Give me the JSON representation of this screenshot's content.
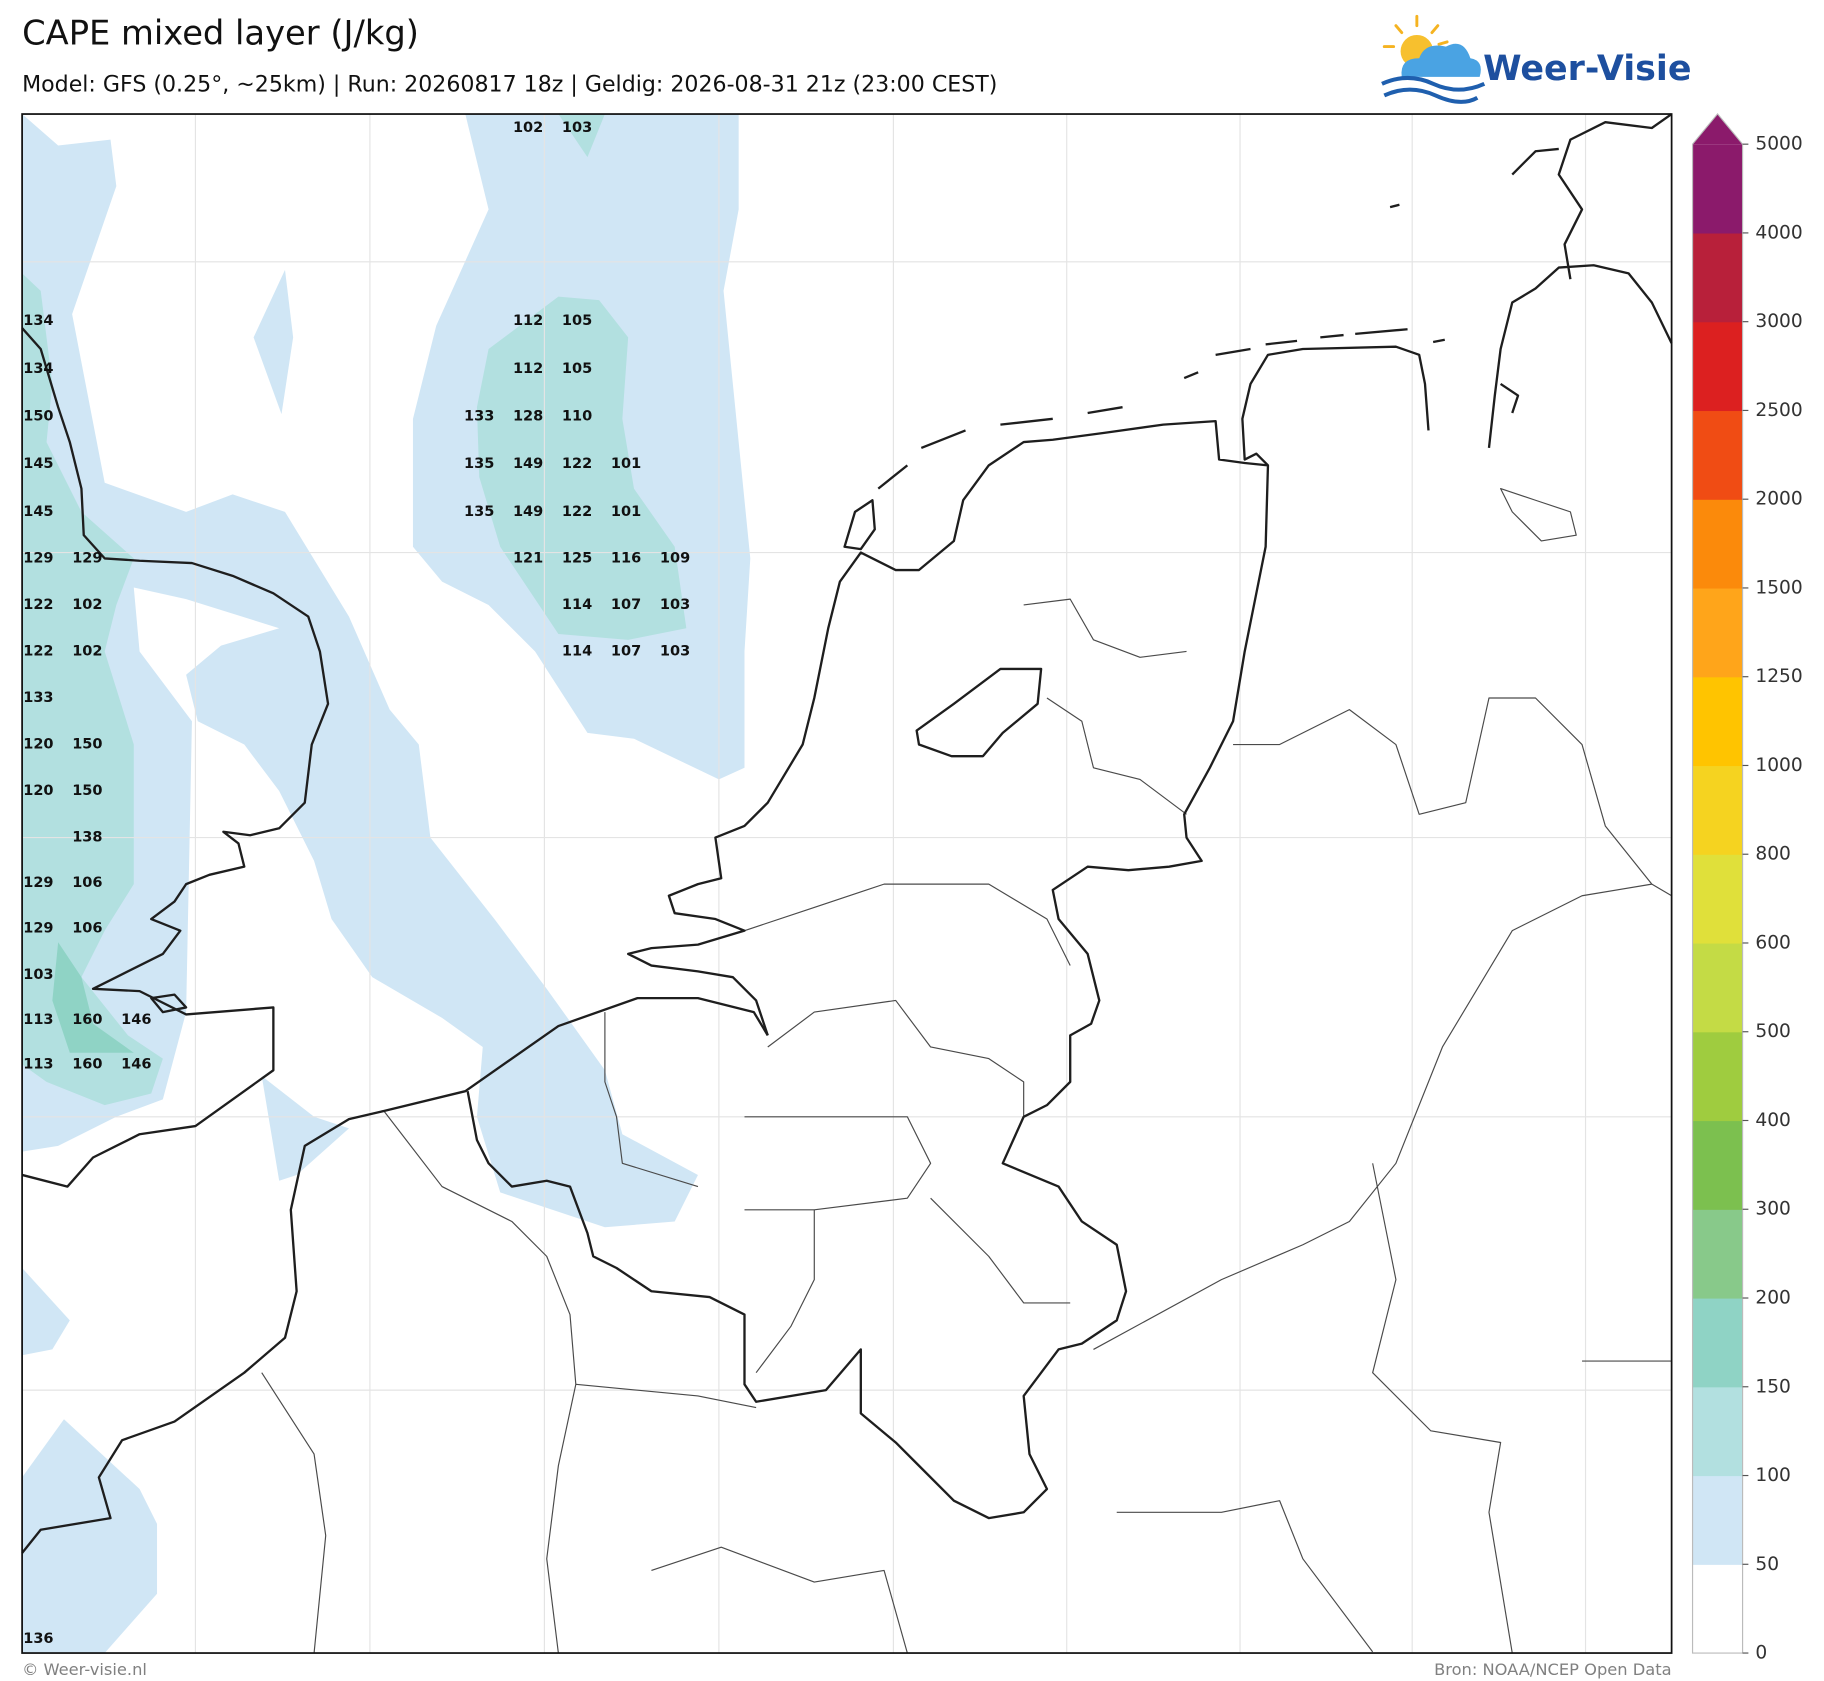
{
  "header": {
    "title": "CAPE mixed layer (J/kg)",
    "subtitle": "Model: GFS (0.25°, ~25km)  |  Run: 20260817 18z  |  Geldig: 2026-08-31 21z (23:00 CEST)",
    "logo": "Weer-Visie"
  },
  "map_labels": {
    "rows": [
      [
        null,
        null,
        null,
        null,
        null,
        null,
        null,
        null,
        null,
        null,
        102,
        103,
        null,
        null
      ],
      [
        134,
        null,
        null,
        null,
        null,
        null,
        null,
        null,
        null,
        null,
        112,
        105,
        null,
        null
      ],
      [
        134,
        null,
        null,
        null,
        null,
        null,
        null,
        null,
        null,
        null,
        112,
        105,
        null,
        null
      ],
      [
        150,
        null,
        null,
        null,
        null,
        null,
        null,
        null,
        null,
        133,
        128,
        110,
        null,
        null
      ],
      [
        145,
        null,
        null,
        null,
        null,
        null,
        null,
        null,
        null,
        135,
        149,
        122,
        101,
        null
      ],
      [
        145,
        null,
        null,
        null,
        null,
        null,
        null,
        null,
        null,
        135,
        149,
        122,
        101,
        null
      ],
      [
        129,
        129,
        null,
        null,
        null,
        null,
        null,
        null,
        null,
        null,
        121,
        125,
        116,
        109
      ],
      [
        122,
        102,
        null,
        null,
        null,
        null,
        null,
        null,
        null,
        null,
        null,
        114,
        107,
        103
      ],
      [
        122,
        102,
        null,
        null,
        null,
        null,
        null,
        null,
        null,
        null,
        null,
        114,
        107,
        103
      ],
      [
        133,
        null,
        null,
        null,
        null,
        null,
        null,
        null,
        null,
        null,
        null,
        null,
        null,
        null
      ],
      [
        120,
        150,
        null,
        null,
        null,
        null,
        null,
        null,
        null,
        null,
        null,
        null,
        null,
        null
      ],
      [
        120,
        150,
        null,
        null,
        null,
        null,
        null,
        null,
        null,
        null,
        null,
        null,
        null,
        null
      ],
      [
        null,
        138,
        null,
        null,
        null,
        null,
        null,
        null,
        null,
        null,
        null,
        null,
        null,
        null
      ],
      [
        129,
        106,
        null,
        null,
        null,
        null,
        null,
        null,
        null,
        null,
        null,
        null,
        null,
        null
      ],
      [
        129,
        106,
        null,
        null,
        null,
        null,
        null,
        null,
        null,
        null,
        null,
        null,
        null,
        null
      ],
      [
        103,
        null,
        null,
        null,
        null,
        null,
        null,
        null,
        null,
        null,
        null,
        null,
        null,
        null
      ],
      [
        113,
        160,
        146,
        null,
        null,
        null,
        null,
        null,
        null,
        null,
        null,
        null,
        null,
        null
      ],
      [
        113,
        160,
        146,
        null,
        null,
        null,
        null,
        null,
        null,
        null,
        null,
        null,
        null,
        null
      ],
      [
        136,
        null,
        null,
        null,
        null,
        null,
        null,
        null,
        null,
        null,
        null,
        null,
        null,
        null
      ]
    ]
  },
  "colorbar": {
    "ticks": [
      0,
      50,
      100,
      150,
      200,
      300,
      400,
      500,
      600,
      800,
      1000,
      1250,
      1500,
      2000,
      2500,
      3000,
      4000,
      5000
    ],
    "colors": [
      "#ffffff",
      "#d0e6f5",
      "#b2e0e0",
      "#8fd3c5",
      "#88c98a",
      "#7cc04f",
      "#9fcc3f",
      "#c4db45",
      "#e0e03a",
      "#f5d320",
      "#ffc400",
      "#ffa51a",
      "#fb8a0b",
      "#f04c14",
      "#dc2020",
      "#b8203a",
      "#8b1a6b"
    ],
    "extend_color": "#8b1a6b"
  },
  "footer": {
    "left": "© Weer-visie.nl",
    "right": "Bron: NOAA/NCEP Open Data"
  }
}
